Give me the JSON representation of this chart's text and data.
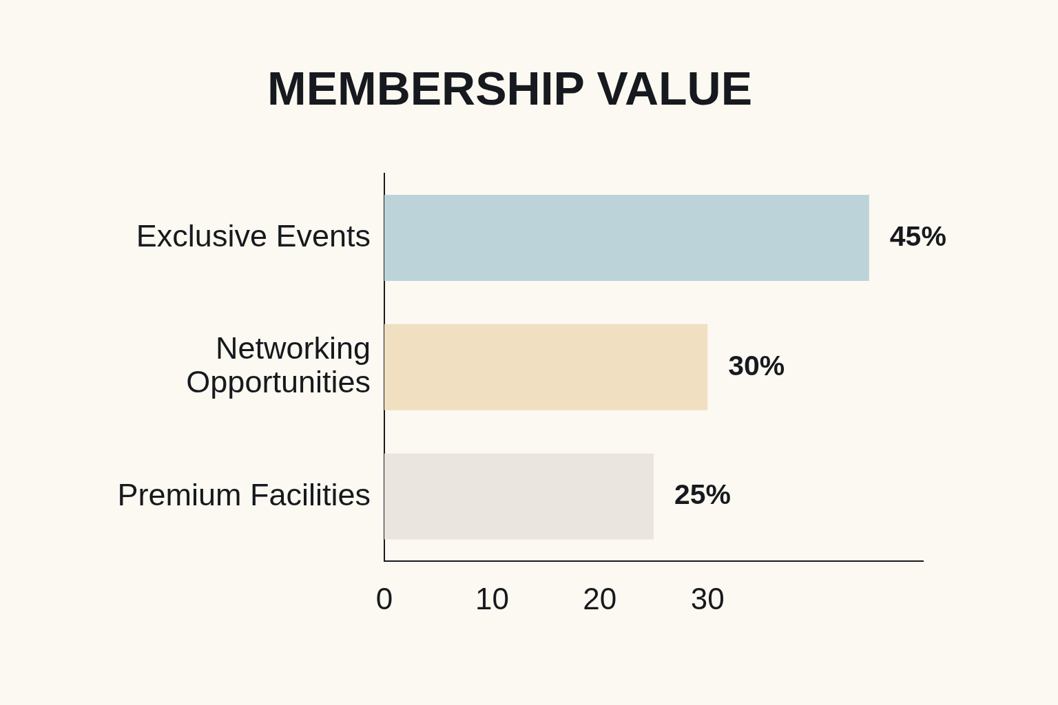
{
  "chart_data": {
    "type": "bar",
    "title": "MEMBERSHIP VALUE",
    "orientation": "horizontal",
    "categories": [
      "Exclusive Events",
      "Networking Opportunities",
      "Premium Facilities"
    ],
    "values": [
      45,
      30,
      25
    ],
    "colors": [
      "#bcd3d9",
      "#f0dfc0",
      "#ebe5df"
    ],
    "value_labels": [
      "45%",
      "30%",
      "25%"
    ],
    "xlim": [
      0,
      50
    ],
    "xticks": [
      0,
      10,
      20,
      30
    ],
    "grid": false,
    "legend": false
  }
}
